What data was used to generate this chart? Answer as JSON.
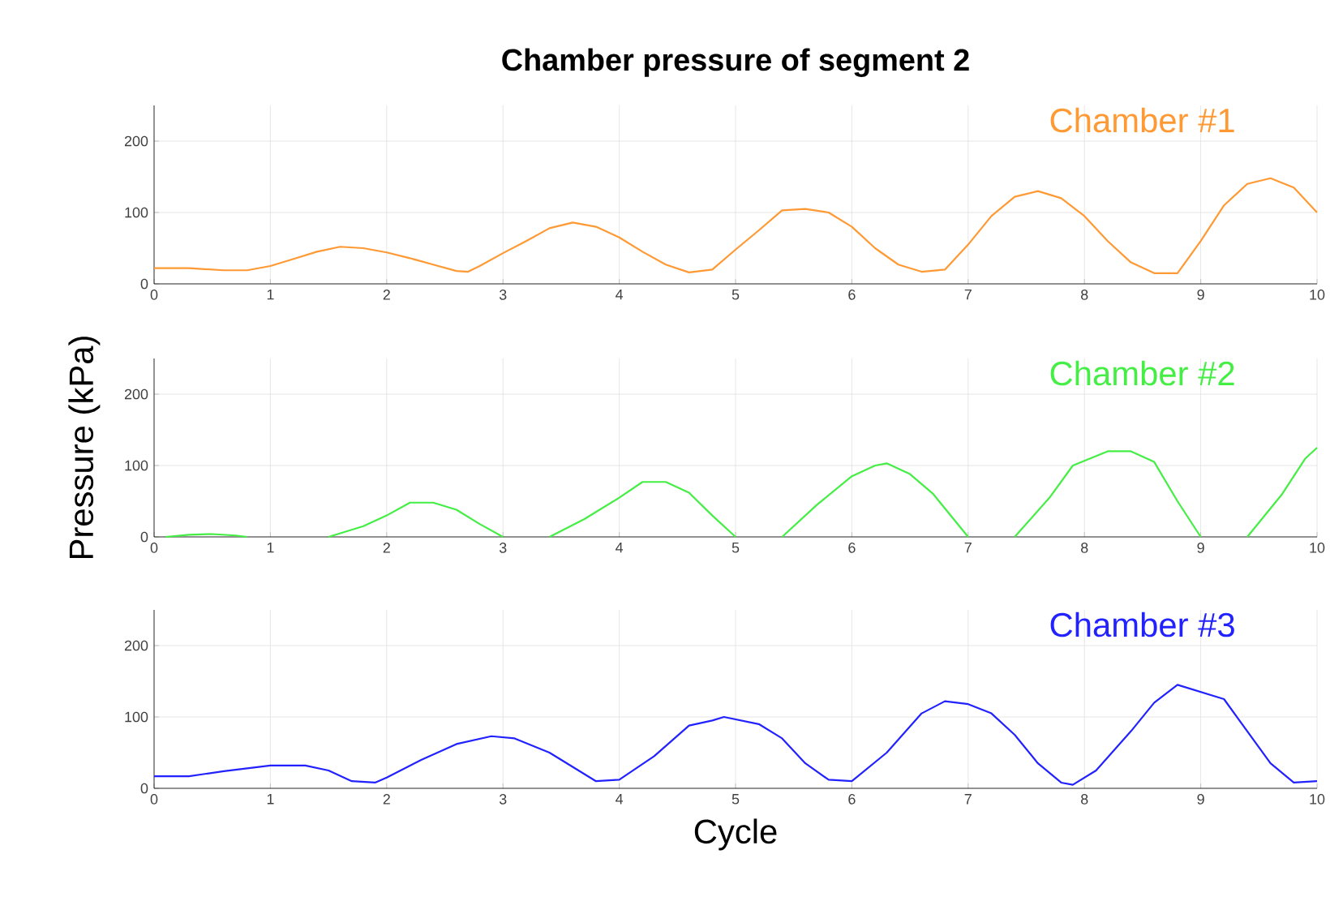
{
  "chart_data": [
    {
      "type": "line",
      "title": "Chamber pressure of segment 2",
      "grid": true,
      "xlim": [
        0,
        10
      ],
      "ylim": [
        0,
        250
      ],
      "xticks": [
        0,
        1,
        2,
        3,
        4,
        5,
        6,
        7,
        8,
        9,
        10
      ],
      "yticks": [
        0,
        100,
        200
      ],
      "series": [
        {
          "name": "Chamber #1",
          "color": "#ff9933",
          "x": [
            0,
            0.3,
            0.6,
            0.8,
            1.0,
            1.2,
            1.4,
            1.6,
            1.8,
            2.0,
            2.2,
            2.4,
            2.6,
            2.7,
            2.8,
            3.0,
            3.2,
            3.4,
            3.6,
            3.8,
            4.0,
            4.2,
            4.4,
            4.6,
            4.8,
            5.0,
            5.2,
            5.4,
            5.6,
            5.8,
            6.0,
            6.2,
            6.4,
            6.6,
            6.8,
            7.0,
            7.2,
            7.4,
            7.6,
            7.8,
            8.0,
            8.2,
            8.4,
            8.6,
            8.8,
            9.0,
            9.2,
            9.4,
            9.6,
            9.8,
            10
          ],
          "values": [
            22,
            22,
            19,
            19,
            25,
            35,
            45,
            52,
            50,
            44,
            36,
            27,
            18,
            17,
            25,
            43,
            60,
            78,
            86,
            80,
            65,
            45,
            27,
            16,
            20,
            48,
            75,
            103,
            105,
            100,
            80,
            50,
            27,
            17,
            20,
            55,
            95,
            122,
            130,
            120,
            95,
            60,
            30,
            15,
            15,
            60,
            110,
            140,
            148,
            135,
            100
          ]
        }
      ]
    },
    {
      "type": "line",
      "ylabel": "Pressure (kPa)",
      "grid": true,
      "xlim": [
        0,
        10
      ],
      "ylim": [
        0,
        250
      ],
      "xticks": [
        0,
        1,
        2,
        3,
        4,
        5,
        6,
        7,
        8,
        9,
        10
      ],
      "yticks": [
        0,
        100,
        200
      ],
      "series": [
        {
          "name": "Chamber #2",
          "color": "#44ee44",
          "x": [
            0.1,
            0.3,
            0.5,
            0.7,
            0.8,
            1.15,
            1.5,
            1.8,
            2.0,
            2.2,
            2.4,
            2.6,
            2.8,
            3.0,
            3.2,
            3.4,
            3.7,
            4.0,
            4.2,
            4.4,
            4.6,
            4.8,
            5.0,
            5.2,
            5.4,
            5.7,
            6.0,
            6.2,
            6.3,
            6.5,
            6.7,
            7.0,
            7.2,
            7.4,
            7.7,
            7.9,
            8.2,
            8.4,
            8.6,
            8.8,
            9.0,
            9.2,
            9.4,
            9.7,
            9.9,
            10
          ],
          "values": [
            0,
            3,
            4,
            2,
            0,
            null,
            0,
            15,
            30,
            48,
            48,
            38,
            18,
            0,
            null,
            0,
            25,
            55,
            77,
            77,
            62,
            30,
            0,
            null,
            0,
            45,
            85,
            100,
            103,
            88,
            60,
            0,
            null,
            0,
            55,
            100,
            120,
            120,
            105,
            50,
            0,
            null,
            0,
            60,
            110,
            125
          ]
        }
      ]
    },
    {
      "type": "line",
      "xlabel": "Cycle",
      "grid": true,
      "xlim": [
        0,
        10
      ],
      "ylim": [
        0,
        250
      ],
      "xticks": [
        0,
        1,
        2,
        3,
        4,
        5,
        6,
        7,
        8,
        9,
        10
      ],
      "yticks": [
        0,
        100,
        200
      ],
      "series": [
        {
          "name": "Chamber #3",
          "color": "#2222ff",
          "x": [
            0,
            0.3,
            0.6,
            0.8,
            1.0,
            1.3,
            1.5,
            1.7,
            1.9,
            2.0,
            2.3,
            2.6,
            2.9,
            3.1,
            3.4,
            3.6,
            3.8,
            4.0,
            4.3,
            4.6,
            4.8,
            4.9,
            5.2,
            5.4,
            5.6,
            5.8,
            6.0,
            6.3,
            6.6,
            6.8,
            7.0,
            7.2,
            7.4,
            7.6,
            7.8,
            7.9,
            8.1,
            8.4,
            8.6,
            8.8,
            9.0,
            9.2,
            9.4,
            9.6,
            9.8,
            10
          ],
          "values": [
            17,
            17,
            24,
            28,
            32,
            32,
            25,
            10,
            8,
            15,
            40,
            62,
            73,
            70,
            50,
            30,
            10,
            12,
            45,
            88,
            95,
            100,
            90,
            70,
            35,
            12,
            10,
            50,
            105,
            122,
            118,
            105,
            75,
            35,
            8,
            5,
            25,
            80,
            120,
            145,
            135,
            125,
            80,
            35,
            8,
            10
          ]
        }
      ]
    }
  ]
}
